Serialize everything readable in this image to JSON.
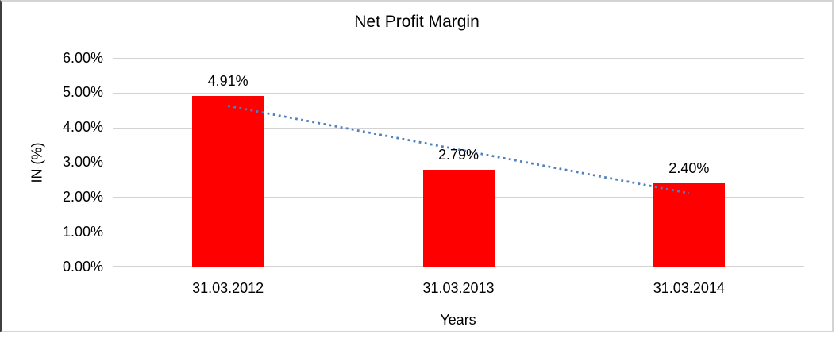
{
  "chart_data": {
    "type": "bar",
    "title": "Net Profit Margin",
    "xlabel": "Years",
    "ylabel": "IN (%)",
    "categories": [
      "31.03.2012",
      "31.03.2013",
      "31.03.2014"
    ],
    "values": [
      4.91,
      2.79,
      2.4
    ],
    "data_labels": [
      "4.91%",
      "2.79%",
      "2.40%"
    ],
    "ylim": [
      0,
      6
    ],
    "ytick_labels": [
      "0.00%",
      "1.00%",
      "2.00%",
      "3.00%",
      "4.00%",
      "5.00%",
      "6.00%"
    ],
    "grid": true,
    "legend": false,
    "bar_color": "#ff0000",
    "gridline_color": "#d3d3d3",
    "trendline": {
      "type": "linear",
      "style": "dotted",
      "color": "#4f81bd",
      "points": [
        {
          "category_index": 0,
          "value": 4.62
        },
        {
          "category_index": 2,
          "value": 2.11
        }
      ]
    }
  }
}
